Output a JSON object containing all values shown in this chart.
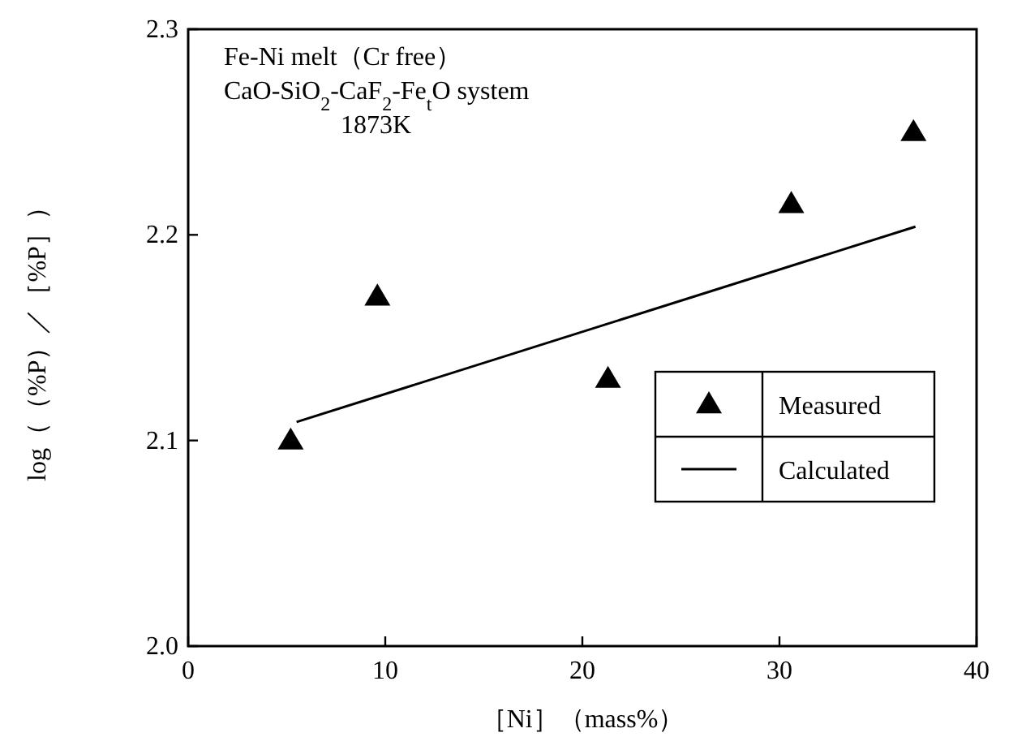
{
  "chart_data": {
    "type": "scatter",
    "xlabel": "［Ni］（mass%）",
    "ylabel": "log（（%P）／［%P］）",
    "annotations": [
      "Fe-Ni melt（Cr free）",
      "CaO-SiO$_{2}$-CaF$_{2}$-Fe$_{t}$O system",
      "1873K"
    ],
    "xlim": [
      0,
      40
    ],
    "xticks": [
      0,
      10,
      20,
      30,
      40
    ],
    "ylim": [
      2.0,
      2.3
    ],
    "yticks": [
      {
        "value": 2.0,
        "label": "2.0"
      },
      {
        "value": 2.1,
        "label": "2.1"
      },
      {
        "value": 2.2,
        "label": "2.2"
      },
      {
        "value": 2.3,
        "label": "2.3"
      }
    ],
    "legend": "right",
    "grid": false,
    "series": [
      {
        "name": "Measured",
        "marker": "triangle",
        "color": "#000000",
        "x": [
          5.2,
          9.6,
          21.3,
          30.6,
          36.8
        ],
        "values": [
          2.1,
          2.17,
          2.13,
          2.215,
          2.25
        ]
      },
      {
        "name": "Calculated",
        "type": "line",
        "marker": "none",
        "line_style": "solid",
        "color": "#000000",
        "x": [
          5.5,
          36.9
        ],
        "values": [
          2.109,
          2.204
        ]
      }
    ]
  }
}
